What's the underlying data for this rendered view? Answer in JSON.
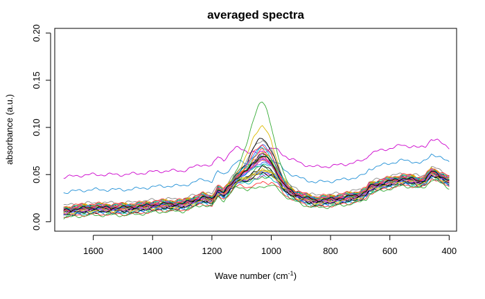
{
  "chart_data": {
    "type": "line",
    "title": "averaged spectra",
    "xlabel": "Wave number (cm",
    "xlabel_sup": "-1",
    "xlabel_suffix": ")",
    "ylabel": "absorbance (a.u.)",
    "xlim": [
      1730,
      375
    ],
    "ylim": [
      -0.01,
      0.205
    ],
    "x_reversed": true,
    "xticks": [
      1600,
      1400,
      1200,
      1000,
      800,
      600,
      400
    ],
    "xtick_labels": [
      "1600",
      "1400",
      "1200",
      "1000",
      "800",
      "600",
      "400"
    ],
    "yticks": [
      0.0,
      0.05,
      0.1,
      0.15,
      0.2
    ],
    "ytick_labels": [
      "0.00",
      "0.05",
      "0.10",
      "0.15",
      "0.20"
    ],
    "grid": false,
    "legend": "none",
    "x_range": [
      1700,
      400
    ],
    "mean_profile": {
      "x": [
        1700,
        1650,
        1600,
        1550,
        1500,
        1450,
        1400,
        1350,
        1300,
        1260,
        1230,
        1200,
        1180,
        1160,
        1140,
        1120,
        1100,
        1080,
        1060,
        1040,
        1030,
        1020,
        1000,
        980,
        960,
        940,
        920,
        900,
        880,
        850,
        800,
        750,
        700,
        680,
        670,
        650,
        600,
        560,
        520,
        500,
        480,
        460,
        440,
        420,
        400
      ],
      "y": [
        0.011,
        0.013,
        0.014,
        0.014,
        0.014,
        0.015,
        0.017,
        0.018,
        0.018,
        0.022,
        0.025,
        0.023,
        0.033,
        0.03,
        0.037,
        0.045,
        0.05,
        0.055,
        0.064,
        0.07,
        0.072,
        0.07,
        0.064,
        0.052,
        0.04,
        0.033,
        0.029,
        0.026,
        0.024,
        0.022,
        0.023,
        0.025,
        0.028,
        0.031,
        0.036,
        0.038,
        0.042,
        0.045,
        0.044,
        0.042,
        0.044,
        0.052,
        0.05,
        0.046,
        0.043
      ]
    },
    "series": [
      {
        "color": "#cc00cc",
        "shift": 0.036,
        "peak_scale": 0.45
      },
      {
        "color": "#1f8fd6",
        "shift": 0.02,
        "peak_scale": 0.55
      },
      {
        "color": "#33aa33",
        "shift": 0.004,
        "peak_scale": 1.85
      },
      {
        "color": "#ddbb00",
        "shift": 0.003,
        "peak_scale": 1.45
      },
      {
        "color": "#888888",
        "shift": 0.006,
        "peak_scale": 1.15
      },
      {
        "color": "#000000",
        "shift": 0.002,
        "peak_scale": 1.25
      },
      {
        "color": "#ff3333",
        "shift": 0.001,
        "peak_scale": 1.05
      },
      {
        "color": "#00bbbb",
        "shift": 0.0,
        "peak_scale": 1.0
      },
      {
        "color": "#3366ff",
        "shift": -0.001,
        "peak_scale": 0.95
      },
      {
        "color": "#dd44dd",
        "shift": 0.002,
        "peak_scale": 0.9
      },
      {
        "color": "#33aa33",
        "shift": -0.003,
        "peak_scale": 0.85
      },
      {
        "color": "#ff3333",
        "shift": 0.005,
        "peak_scale": 0.8
      },
      {
        "color": "#000000",
        "shift": -0.004,
        "peak_scale": 0.85
      },
      {
        "color": "#888888",
        "shift": -0.002,
        "peak_scale": 0.75
      },
      {
        "color": "#ddbb00",
        "shift": 0.001,
        "peak_scale": 0.7
      },
      {
        "color": "#00bbbb",
        "shift": -0.005,
        "peak_scale": 0.7
      },
      {
        "color": "#3366ff",
        "shift": 0.003,
        "peak_scale": 1.1
      },
      {
        "color": "#dd44dd",
        "shift": -0.001,
        "peak_scale": 0.65
      },
      {
        "color": "#33aa33",
        "shift": 0.0,
        "peak_scale": 0.6
      },
      {
        "color": "#ff3333",
        "shift": -0.006,
        "peak_scale": 0.6
      },
      {
        "color": "#000000",
        "shift": 0.0,
        "peak_scale": 1.0
      },
      {
        "color": "#ddbb00",
        "shift": 0.004,
        "peak_scale": 0.95
      },
      {
        "color": "#00bbbb",
        "shift": 0.002,
        "peak_scale": 0.8
      },
      {
        "color": "#3366ff",
        "shift": -0.003,
        "peak_scale": 0.75
      },
      {
        "color": "#888888",
        "shift": 0.001,
        "peak_scale": 0.9
      },
      {
        "color": "#dd44dd",
        "shift": 0.003,
        "peak_scale": 0.85
      },
      {
        "color": "#33aa33",
        "shift": 0.002,
        "peak_scale": 0.95
      },
      {
        "color": "#ff3333",
        "shift": 0.001,
        "peak_scale": 1.15
      },
      {
        "color": "#000000",
        "shift": -0.002,
        "peak_scale": 0.7
      },
      {
        "color": "#00bbbb",
        "shift": 0.003,
        "peak_scale": 1.05
      },
      {
        "color": "#ddbb00",
        "shift": -0.002,
        "peak_scale": 0.75
      },
      {
        "color": "#3366ff",
        "shift": 0.001,
        "peak_scale": 0.85
      },
      {
        "color": "#33aa33",
        "shift": -0.007,
        "peak_scale": 0.55
      },
      {
        "color": "#dd44dd",
        "shift": -0.001,
        "peak_scale": 1.0
      },
      {
        "color": "#ff3333",
        "shift": 0.002,
        "peak_scale": 0.9
      },
      {
        "color": "#000000",
        "shift": 0.001,
        "peak_scale": 0.95
      }
    ]
  }
}
